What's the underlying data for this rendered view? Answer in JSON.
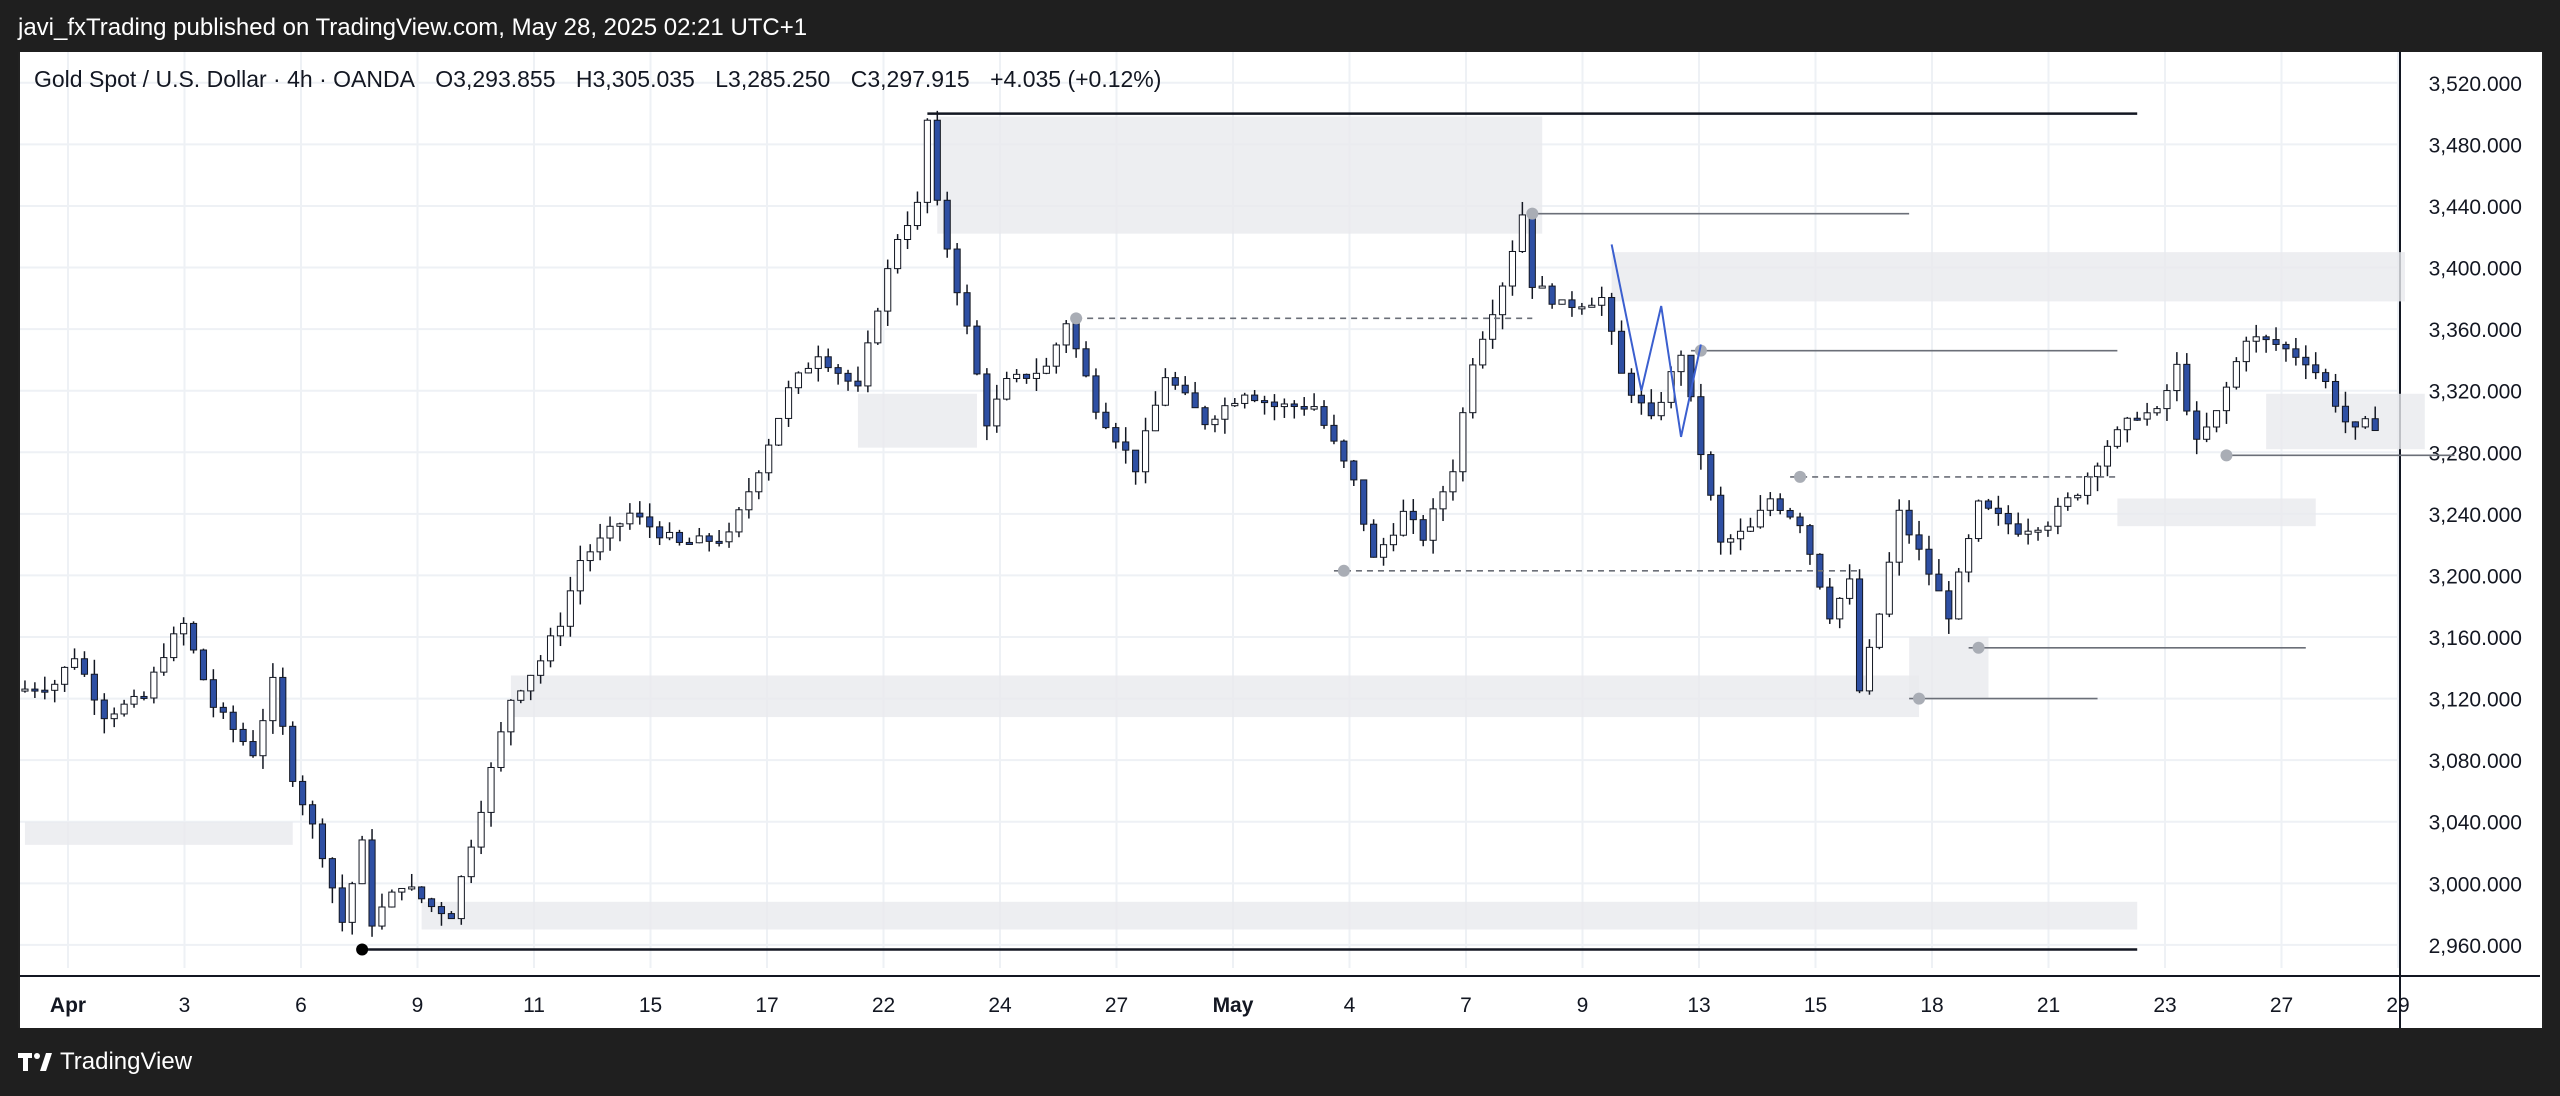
{
  "header": {
    "publish_text": "javi_fxTrading published on TradingView.com, May 28, 2025 02:21 UTC+1"
  },
  "legend": {
    "symbol": "Gold Spot / U.S. Dollar · 4h · OANDA",
    "open": "O3,293.855",
    "high": "H3,305.035",
    "low": "L3,285.250",
    "close": "C3,297.915",
    "change": "+4.035 (+0.12%)"
  },
  "footer": {
    "brand": "TradingView"
  },
  "colors": {
    "bull_body": "#ffffff",
    "bear_body": "#2e4fa3",
    "wick": "#131722",
    "zone": "#e8eaed",
    "grid": "#eef1f5",
    "background": "#ffffff"
  },
  "chart_data": {
    "type": "candlestick",
    "title": "",
    "ylim": [
      2945,
      3540
    ],
    "y_ticks": [
      "3,520.000",
      "3,480.000",
      "3,440.000",
      "3,400.000",
      "3,360.000",
      "3,320.000",
      "3,280.000",
      "3,240.000",
      "3,200.000",
      "3,160.000",
      "3,120.000",
      "3,080.000",
      "3,040.000",
      "3,000.000",
      "2,960.000"
    ],
    "x_ticks": [
      "Apr",
      "3",
      "6",
      "9",
      "11",
      "15",
      "17",
      "22",
      "24",
      "27",
      "May",
      "4",
      "7",
      "9",
      "13",
      "15",
      "18",
      "21",
      "23",
      "27",
      "29"
    ],
    "price_path": [
      [
        0,
        3125
      ],
      [
        4,
        3130
      ],
      [
        6,
        3148
      ],
      [
        9,
        3110
      ],
      [
        13,
        3120
      ],
      [
        15,
        3150
      ],
      [
        17,
        3168
      ],
      [
        20,
        3115
      ],
      [
        24,
        3085
      ],
      [
        26,
        3130
      ],
      [
        28,
        3070
      ],
      [
        31,
        3020
      ],
      [
        33,
        2975
      ],
      [
        35,
        3025
      ],
      [
        36,
        2975
      ],
      [
        39,
        3000
      ],
      [
        42,
        2985
      ],
      [
        44,
        2980
      ],
      [
        47,
        3050
      ],
      [
        50,
        3120
      ],
      [
        53,
        3145
      ],
      [
        55,
        3170
      ],
      [
        57,
        3210
      ],
      [
        62,
        3240
      ],
      [
        67,
        3220
      ],
      [
        72,
        3225
      ],
      [
        75,
        3270
      ],
      [
        78,
        3320
      ],
      [
        81,
        3345
      ],
      [
        85,
        3320
      ],
      [
        87,
        3375
      ],
      [
        89,
        3420
      ],
      [
        91,
        3440
      ],
      [
        92,
        3495
      ],
      [
        93,
        3440
      ],
      [
        96,
        3360
      ],
      [
        98,
        3300
      ],
      [
        100,
        3325
      ],
      [
        104,
        3335
      ],
      [
        106,
        3365
      ],
      [
        109,
        3310
      ],
      [
        113,
        3270
      ],
      [
        116,
        3330
      ],
      [
        120,
        3300
      ],
      [
        124,
        3320
      ],
      [
        127,
        3310
      ],
      [
        131,
        3310
      ],
      [
        135,
        3260
      ],
      [
        137,
        3210
      ],
      [
        140,
        3240
      ],
      [
        142,
        3225
      ],
      [
        145,
        3270
      ],
      [
        147,
        3340
      ],
      [
        150,
        3390
      ],
      [
        152,
        3435
      ],
      [
        153,
        3390
      ],
      [
        156,
        3375
      ],
      [
        160,
        3380
      ],
      [
        162,
        3330
      ],
      [
        165,
        3300
      ],
      [
        167,
        3330
      ],
      [
        168,
        3345
      ],
      [
        170,
        3280
      ],
      [
        172,
        3220
      ],
      [
        175,
        3230
      ],
      [
        177,
        3250
      ],
      [
        180,
        3235
      ],
      [
        183,
        3175
      ],
      [
        185,
        3195
      ],
      [
        186,
        3125
      ],
      [
        188,
        3175
      ],
      [
        190,
        3240
      ],
      [
        192,
        3215
      ],
      [
        195,
        3175
      ],
      [
        198,
        3245
      ],
      [
        202,
        3230
      ],
      [
        205,
        3235
      ],
      [
        208,
        3255
      ],
      [
        211,
        3285
      ],
      [
        214,
        3305
      ],
      [
        216,
        3305
      ],
      [
        218,
        3335
      ],
      [
        220,
        3285
      ],
      [
        222,
        3305
      ],
      [
        225,
        3355
      ],
      [
        228,
        3350
      ],
      [
        231,
        3340
      ],
      [
        233,
        3325
      ],
      [
        235,
        3300
      ],
      [
        236,
        3293
      ],
      [
        237,
        3298
      ]
    ],
    "zones": [
      {
        "from": 0,
        "to": 27,
        "y1": 3025,
        "y2": 3040
      },
      {
        "from": 40,
        "to": 213,
        "y1": 2970,
        "y2": 2988
      },
      {
        "from": 49,
        "to": 191,
        "y1": 3108,
        "y2": 3135
      },
      {
        "from": 84,
        "to": 96,
        "y1": 3283,
        "y2": 3318
      },
      {
        "from": 92,
        "to": 153,
        "y1": 3422,
        "y2": 3498
      },
      {
        "from": 160,
        "to": 240,
        "y1": 3378,
        "y2": 3410
      },
      {
        "from": 211,
        "to": 231,
        "y1": 3232,
        "y2": 3250
      },
      {
        "from": 190,
        "to": 198,
        "y1": 3120,
        "y2": 3160
      },
      {
        "from": 226,
        "to": 242,
        "y1": 3282,
        "y2": 3318
      }
    ],
    "levels": [
      {
        "from": 91,
        "to": 213,
        "y": 3500,
        "dashed": false
      },
      {
        "from": 152,
        "to": 190,
        "y": 3435,
        "dashed": false
      },
      {
        "from": 168,
        "to": 211,
        "y": 3346,
        "dashed": false
      },
      {
        "from": 106,
        "to": 152,
        "y": 3367,
        "dashed": true
      },
      {
        "from": 178,
        "to": 211,
        "y": 3264,
        "dashed": true
      },
      {
        "from": 132,
        "to": 185,
        "y": 3203,
        "dashed": true
      },
      {
        "from": 196,
        "to": 230,
        "y": 3153,
        "dashed": false
      },
      {
        "from": 190,
        "to": 209,
        "y": 3120,
        "dashed": false
      },
      {
        "from": 222,
        "to": 245,
        "y": 3278,
        "dashed": false
      },
      {
        "from": 34,
        "to": 213,
        "y": 2957,
        "dashed": false
      }
    ],
    "pivots": [
      [
        106,
        3367
      ],
      [
        152,
        3435
      ],
      [
        169,
        3346
      ],
      [
        179,
        3264
      ],
      [
        133,
        3203
      ],
      [
        191,
        3120
      ],
      [
        197,
        3153
      ],
      [
        222,
        3278
      ],
      [
        34,
        2957
      ]
    ]
  }
}
